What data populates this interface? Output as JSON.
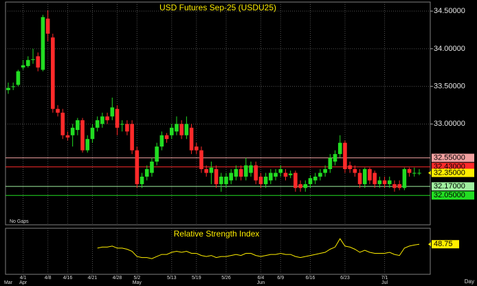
{
  "chart_data": [
    {
      "type": "candlestick",
      "title": "USD Futures Sep-25 (USDU25)",
      "note": "No Gaps",
      "period": "Day",
      "up_color": "#22dd22",
      "down_color": "#ff2a2a",
      "categories": [
        null,
        null,
        null,
        "4/1",
        null,
        null,
        null,
        null,
        "4/8",
        null,
        null,
        null,
        "4/16",
        null,
        null,
        null,
        null,
        "4/21",
        null,
        null,
        null,
        null,
        "4/28",
        null,
        null,
        null,
        "5/2",
        null,
        null,
        null,
        null,
        null,
        null,
        "5/13",
        null,
        null,
        null,
        null,
        "5/19",
        null,
        null,
        null,
        null,
        null,
        "5/26",
        null,
        null,
        null,
        null,
        null,
        null,
        "6/4",
        null,
        null,
        null,
        "6/9",
        null,
        null,
        null,
        null,
        null,
        "6/16",
        null,
        null,
        null,
        null,
        null,
        null,
        "6/23",
        null,
        null,
        null,
        null,
        null,
        null,
        null,
        "7/1",
        null,
        null,
        null,
        null,
        null,
        null,
        null
      ],
      "months": [
        "Mar",
        null,
        null,
        "Apr",
        null,
        null,
        null,
        null,
        null,
        null,
        null,
        null,
        null,
        null,
        null,
        null,
        null,
        null,
        null,
        null,
        null,
        null,
        null,
        null,
        null,
        null,
        "May",
        null,
        null,
        null,
        null,
        null,
        null,
        null,
        null,
        null,
        null,
        null,
        null,
        null,
        null,
        null,
        null,
        null,
        null,
        null,
        null,
        null,
        null,
        null,
        null,
        "Jun",
        null,
        null,
        null,
        null,
        null,
        null,
        null,
        null,
        null,
        null,
        null,
        null,
        null,
        null,
        null,
        null,
        null,
        null,
        null,
        null,
        null,
        null,
        null,
        null,
        "Jul",
        null,
        null,
        null,
        null,
        null,
        null,
        null
      ],
      "open": [
        33.45,
        33.5,
        33.52,
        33.75,
        33.77,
        33.85,
        33.9,
        33.72,
        34.4,
        34.15,
        33.2,
        33.15,
        32.85,
        32.85,
        32.92,
        33.05,
        32.65,
        32.8,
        32.95,
        33.0,
        33.1,
        33.1,
        33.2,
        33.0,
        33.0,
        33.0,
        32.65,
        32.2,
        32.3,
        32.35,
        32.5,
        32.7,
        32.85,
        32.85,
        32.9,
        33.0,
        32.85,
        32.95,
        32.7,
        32.65,
        32.4,
        32.35,
        32.4,
        32.2,
        32.2,
        32.25,
        32.3,
        32.4,
        32.3,
        32.35,
        32.45,
        32.3,
        32.2,
        32.25,
        32.3,
        32.35,
        32.35,
        32.32,
        32.35,
        32.2,
        32.15,
        32.2,
        32.25,
        32.3,
        32.35,
        32.4,
        32.5,
        32.6,
        32.75,
        32.45,
        32.4,
        32.35,
        32.2,
        32.4,
        32.35,
        32.2,
        32.25,
        32.2,
        32.2,
        32.2,
        32.15,
        32.4,
        32.35,
        32.35
      ],
      "high": [
        33.55,
        33.55,
        33.72,
        33.85,
        33.9,
        34.0,
        33.95,
        34.45,
        34.51,
        34.2,
        33.25,
        33.2,
        32.9,
        33.0,
        33.08,
        33.08,
        32.85,
        33.0,
        33.1,
        33.15,
        33.15,
        33.35,
        33.25,
        33.05,
        33.05,
        33.05,
        32.7,
        32.35,
        32.45,
        32.55,
        32.75,
        32.9,
        32.88,
        33.0,
        33.1,
        33.05,
        33.1,
        33.0,
        32.75,
        32.7,
        32.45,
        32.5,
        32.45,
        32.35,
        32.35,
        32.4,
        32.45,
        32.45,
        32.55,
        32.5,
        32.5,
        32.35,
        32.35,
        32.4,
        32.4,
        32.45,
        32.4,
        32.38,
        32.38,
        32.25,
        32.25,
        32.32,
        32.35,
        32.4,
        32.45,
        32.6,
        32.65,
        32.85,
        32.78,
        32.5,
        32.45,
        32.4,
        32.42,
        32.42,
        32.38,
        32.3,
        32.3,
        32.3,
        32.25,
        32.25,
        32.42,
        32.42,
        32.42,
        32.4
      ],
      "low": [
        33.4,
        33.45,
        33.5,
        33.72,
        33.75,
        33.8,
        33.7,
        33.7,
        34.1,
        33.15,
        33.1,
        32.8,
        32.78,
        32.7,
        32.85,
        32.62,
        32.62,
        32.75,
        32.9,
        32.95,
        33.0,
        33.05,
        32.85,
        32.9,
        32.85,
        32.6,
        32.15,
        32.15,
        32.25,
        32.3,
        32.45,
        32.65,
        32.75,
        32.8,
        32.85,
        32.8,
        32.8,
        32.6,
        32.6,
        32.35,
        32.3,
        32.2,
        32.15,
        32.1,
        32.15,
        32.2,
        32.25,
        32.25,
        32.25,
        32.3,
        32.2,
        32.15,
        32.15,
        32.2,
        32.25,
        32.3,
        32.25,
        32.28,
        32.1,
        32.1,
        32.1,
        32.15,
        32.2,
        32.25,
        32.3,
        32.35,
        32.45,
        32.55,
        32.35,
        32.35,
        32.3,
        32.15,
        32.15,
        32.2,
        32.15,
        32.15,
        32.15,
        32.15,
        32.1,
        32.12,
        32.12,
        32.3,
        32.3,
        32.32
      ],
      "close": [
        33.48,
        33.5,
        33.7,
        33.78,
        33.85,
        33.86,
        33.75,
        34.42,
        34.2,
        33.2,
        33.15,
        32.85,
        32.82,
        32.95,
        33.05,
        32.65,
        32.8,
        32.95,
        33.05,
        33.1,
        33.05,
        33.22,
        32.95,
        33.0,
        32.9,
        32.65,
        32.2,
        32.3,
        32.4,
        32.5,
        32.7,
        32.85,
        32.8,
        32.95,
        33.0,
        32.85,
        33.0,
        32.65,
        32.65,
        32.4,
        32.35,
        32.42,
        32.2,
        32.3,
        32.3,
        32.35,
        32.4,
        32.3,
        32.45,
        32.45,
        32.25,
        32.2,
        32.3,
        32.35,
        32.35,
        32.4,
        32.3,
        32.34,
        32.15,
        32.15,
        32.2,
        32.28,
        32.3,
        32.35,
        32.4,
        32.55,
        32.6,
        32.75,
        32.4,
        32.4,
        32.35,
        32.2,
        32.4,
        32.25,
        32.2,
        32.25,
        32.2,
        32.25,
        32.15,
        32.15,
        32.4,
        32.35,
        32.35,
        32.35
      ],
      "ylim": [
        31.66,
        34.62
      ],
      "yticks": [
        {
          "value": 34.5,
          "label": "34.50000"
        },
        {
          "value": 34.0,
          "label": "34.00000"
        },
        {
          "value": 33.5,
          "label": "33.50000"
        },
        {
          "value": 33.0,
          "label": "33.00000"
        }
      ],
      "grid": true,
      "levels": [
        {
          "value": 32.55,
          "label": "32.55000",
          "color": "#f2a0a0"
        },
        {
          "value": 32.43,
          "label": "32.43000",
          "color": "#ff2a2a"
        },
        {
          "value": 32.17,
          "label": "32.17000",
          "color": "#9ff09f"
        },
        {
          "value": 32.05,
          "label": "32.05000",
          "color": "#22dd22"
        }
      ],
      "last_price": {
        "value": 32.35,
        "label": "32.35000",
        "color": "#ffee00"
      }
    },
    {
      "type": "line",
      "title": "Relative Strength Index",
      "color": "#ffee00",
      "values": [
        null,
        null,
        null,
        null,
        null,
        null,
        null,
        null,
        null,
        null,
        null,
        null,
        null,
        null,
        null,
        null,
        null,
        null,
        45,
        46,
        46,
        47,
        45,
        45,
        44,
        42,
        37,
        36,
        36,
        35,
        37,
        39,
        39,
        41,
        42,
        41,
        42,
        40,
        40,
        38,
        37,
        38,
        36,
        37,
        37,
        38,
        39,
        38,
        40,
        40,
        38,
        37,
        38,
        39,
        39,
        40,
        39,
        39,
        37,
        36,
        37,
        38,
        39,
        40,
        41,
        44,
        46,
        54,
        47,
        46,
        44,
        41,
        43,
        41,
        40,
        40,
        40,
        41,
        39,
        38,
        45,
        47,
        48,
        48.75
      ],
      "ylim": [
        20,
        64
      ]
    }
  ]
}
